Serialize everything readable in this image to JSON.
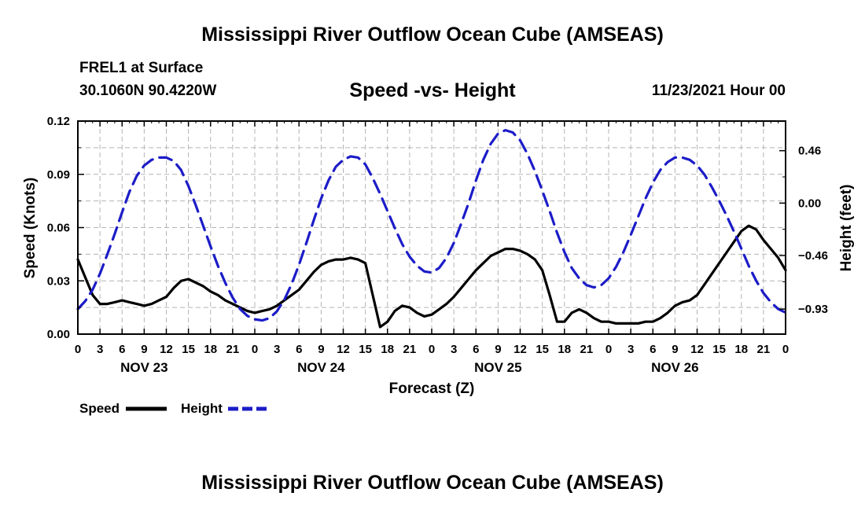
{
  "header": {
    "title": "Mississippi River Outflow Ocean Cube (AMSEAS)",
    "station": "FREL1 at Surface",
    "coords": "30.1060N  90.4220W",
    "subtitle": "Speed -vs- Height",
    "run": "11/23/2021 Hour 00"
  },
  "footer": {
    "title": "Mississippi River Outflow Ocean Cube (AMSEAS)"
  },
  "chart_data": {
    "type": "line",
    "title": "Speed -vs- Height",
    "xlabel": "Forecast (Z)",
    "ylabel": "Speed (Knots)",
    "y2label": "Height (feet)",
    "xlim": [
      0,
      96
    ],
    "ylim": [
      0,
      0.12
    ],
    "y2lim": [
      -1.15,
      0.72
    ],
    "grid": true,
    "x_ticks": [
      0,
      3,
      6,
      9,
      12,
      15,
      18,
      21,
      24,
      27,
      30,
      33,
      36,
      39,
      42,
      45,
      48,
      51,
      54,
      57,
      60,
      63,
      66,
      69,
      72,
      75,
      78,
      81,
      84,
      87,
      90,
      93,
      96
    ],
    "x_tick_labels": [
      "0",
      "3",
      "6",
      "9",
      "12",
      "15",
      "18",
      "21",
      "0",
      "3",
      "6",
      "9",
      "12",
      "15",
      "18",
      "21",
      "0",
      "3",
      "6",
      "9",
      "12",
      "15",
      "18",
      "21",
      "0",
      "3",
      "6",
      "9",
      "12",
      "15",
      "18",
      "21",
      "0"
    ],
    "day_labels": [
      {
        "x": 9,
        "label": "NOV 23"
      },
      {
        "x": 33,
        "label": "NOV 24"
      },
      {
        "x": 57,
        "label": "NOV 25"
      },
      {
        "x": 81,
        "label": "NOV 26"
      }
    ],
    "y_ticks": [
      0,
      0.03,
      0.06,
      0.09,
      0.12
    ],
    "y_tick_labels": [
      "0.00",
      "0.03",
      "0.06",
      "0.09",
      "0.12"
    ],
    "y2_ticks": [
      -0.93,
      -0.46,
      0.0,
      0.46
    ],
    "y2_tick_labels": [
      "−0.93",
      "−0.46",
      "0.00",
      "0.46"
    ],
    "legend": [
      {
        "label": "Speed",
        "color": "#000000",
        "dash": "solid"
      },
      {
        "label": "Height",
        "color": "#1c1cc8",
        "dash": "dashed"
      }
    ],
    "series": [
      {
        "name": "Speed",
        "axis": "left",
        "color": "#000000",
        "x": [
          0,
          1,
          2,
          3,
          4,
          5,
          6,
          7,
          8,
          9,
          10,
          11,
          12,
          13,
          14,
          15,
          16,
          17,
          18,
          19,
          20,
          21,
          22,
          23,
          24,
          25,
          26,
          27,
          28,
          29,
          30,
          31,
          32,
          33,
          34,
          35,
          36,
          37,
          38,
          39,
          40,
          41,
          42,
          43,
          44,
          45,
          46,
          47,
          48,
          49,
          50,
          51,
          52,
          53,
          54,
          55,
          56,
          57,
          58,
          59,
          60,
          61,
          62,
          63,
          64,
          65,
          66,
          67,
          68,
          69,
          70,
          71,
          72,
          73,
          74,
          75,
          76,
          77,
          78,
          79,
          80,
          81,
          82,
          83,
          84,
          85,
          86,
          87,
          88,
          89,
          90,
          91,
          92,
          93,
          94,
          95,
          96
        ],
        "values": [
          0.042,
          0.032,
          0.022,
          0.017,
          0.017,
          0.018,
          0.019,
          0.018,
          0.017,
          0.016,
          0.017,
          0.019,
          0.021,
          0.026,
          0.03,
          0.031,
          0.029,
          0.027,
          0.024,
          0.022,
          0.019,
          0.017,
          0.015,
          0.013,
          0.012,
          0.013,
          0.014,
          0.016,
          0.019,
          0.022,
          0.025,
          0.03,
          0.035,
          0.039,
          0.041,
          0.042,
          0.042,
          0.043,
          0.042,
          0.04,
          0.022,
          0.004,
          0.007,
          0.013,
          0.016,
          0.015,
          0.012,
          0.01,
          0.011,
          0.014,
          0.017,
          0.021,
          0.026,
          0.031,
          0.036,
          0.04,
          0.044,
          0.046,
          0.048,
          0.048,
          0.047,
          0.045,
          0.042,
          0.036,
          0.022,
          0.007,
          0.007,
          0.012,
          0.014,
          0.012,
          0.009,
          0.007,
          0.007,
          0.006,
          0.006,
          0.006,
          0.006,
          0.007,
          0.007,
          0.009,
          0.012,
          0.016,
          0.018,
          0.019,
          0.022,
          0.028,
          0.034,
          0.04,
          0.046,
          0.052,
          0.058,
          0.061,
          0.059,
          0.053,
          0.048,
          0.043,
          0.036
        ]
      },
      {
        "name": "Height",
        "axis": "right",
        "color": "#1c1cc8",
        "x": [
          0,
          1,
          2,
          3,
          4,
          5,
          6,
          7,
          8,
          9,
          10,
          11,
          12,
          13,
          14,
          15,
          16,
          17,
          18,
          19,
          20,
          21,
          22,
          23,
          24,
          25,
          26,
          27,
          28,
          29,
          30,
          31,
          32,
          33,
          34,
          35,
          36,
          37,
          38,
          39,
          40,
          41,
          42,
          43,
          44,
          45,
          46,
          47,
          48,
          49,
          50,
          51,
          52,
          53,
          54,
          55,
          56,
          57,
          58,
          59,
          60,
          61,
          62,
          63,
          64,
          65,
          66,
          67,
          68,
          69,
          70,
          71,
          72,
          73,
          74,
          75,
          76,
          77,
          78,
          79,
          80,
          81,
          82,
          83,
          84,
          85,
          86,
          87,
          88,
          89,
          90,
          91,
          92,
          93,
          94,
          95,
          96
        ],
        "values": [
          -0.93,
          -0.86,
          -0.76,
          -0.62,
          -0.45,
          -0.27,
          -0.08,
          0.1,
          0.24,
          0.33,
          0.38,
          0.4,
          0.4,
          0.37,
          0.29,
          0.15,
          -0.02,
          -0.2,
          -0.38,
          -0.55,
          -0.7,
          -0.83,
          -0.93,
          -0.99,
          -1.02,
          -1.03,
          -1.01,
          -0.95,
          -0.85,
          -0.71,
          -0.54,
          -0.35,
          -0.15,
          0.04,
          0.2,
          0.32,
          0.38,
          0.41,
          0.4,
          0.34,
          0.22,
          0.08,
          -0.07,
          -0.22,
          -0.36,
          -0.47,
          -0.55,
          -0.6,
          -0.61,
          -0.57,
          -0.48,
          -0.35,
          -0.18,
          0.0,
          0.2,
          0.38,
          0.52,
          0.61,
          0.64,
          0.62,
          0.55,
          0.43,
          0.28,
          0.11,
          -0.07,
          -0.26,
          -0.43,
          -0.57,
          -0.66,
          -0.72,
          -0.74,
          -0.72,
          -0.66,
          -0.56,
          -0.43,
          -0.28,
          -0.12,
          0.04,
          0.18,
          0.29,
          0.36,
          0.4,
          0.4,
          0.38,
          0.33,
          0.25,
          0.14,
          0.02,
          -0.11,
          -0.25,
          -0.4,
          -0.55,
          -0.68,
          -0.79,
          -0.87,
          -0.93,
          -0.96
        ]
      }
    ]
  }
}
